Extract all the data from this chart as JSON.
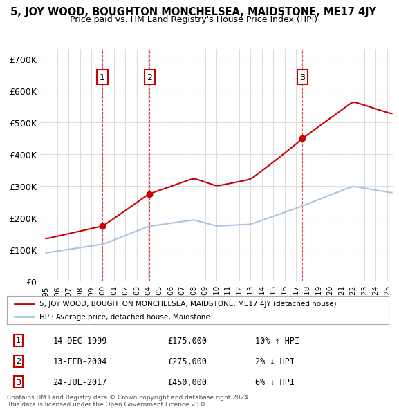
{
  "title": "5, JOY WOOD, BOUGHTON MONCHELSEA, MAIDSTONE, ME17 4JY",
  "subtitle": "Price paid vs. HM Land Registry's House Price Index (HPI)",
  "property_label": "5, JOY WOOD, BOUGHTON MONCHELSEA, MAIDSTONE, ME17 4JY (detached house)",
  "hpi_label": "HPI: Average price, detached house, Maidstone",
  "sale_color": "#cc0000",
  "hpi_color": "#aac4e0",
  "background_color": "#ffffff",
  "grid_color": "#dddddd",
  "sale_points": [
    {
      "year": 1999.96,
      "price": 175000,
      "label": "1"
    },
    {
      "year": 2004.12,
      "price": 275000,
      "label": "2"
    },
    {
      "year": 2017.56,
      "price": 450000,
      "label": "3"
    }
  ],
  "table_rows": [
    {
      "num": "1",
      "date": "14-DEC-1999",
      "price": "£175,000",
      "hpi": "10% ↑ HPI"
    },
    {
      "num": "2",
      "date": "13-FEB-2004",
      "price": "£275,000",
      "hpi": "2% ↓ HPI"
    },
    {
      "num": "3",
      "date": "24-JUL-2017",
      "price": "£450,000",
      "hpi": "6% ↓ HPI"
    }
  ],
  "footer": "Contains HM Land Registry data © Crown copyright and database right 2024.\nThis data is licensed under the Open Government Licence v3.0.",
  "ylim": [
    0,
    730000
  ],
  "yticks": [
    0,
    100000,
    200000,
    300000,
    400000,
    500000,
    600000,
    700000
  ],
  "ytick_labels": [
    "£0",
    "£100K",
    "£200K",
    "£300K",
    "£400K",
    "£500K",
    "£600K",
    "£700K"
  ],
  "xlim": [
    1994.5,
    2025.5
  ]
}
